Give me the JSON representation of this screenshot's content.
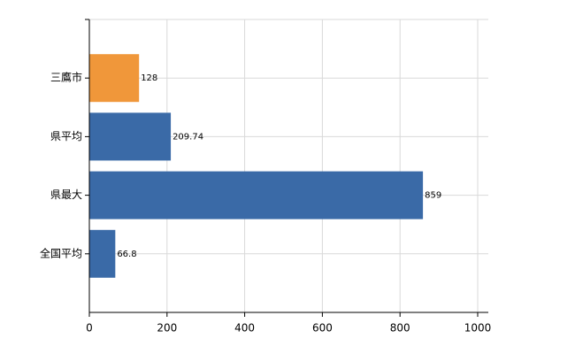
{
  "chart_data": {
    "type": "bar",
    "orientation": "horizontal",
    "categories": [
      "三鷹市",
      "県平均",
      "県最大",
      "全国平均"
    ],
    "values": [
      128,
      209.74,
      859,
      66.8
    ],
    "colors": [
      "#f0973a",
      "#3a6aa7",
      "#3a6aa7",
      "#3a6aa7"
    ],
    "xlim": [
      0,
      1000
    ],
    "xticks": [
      0,
      200,
      400,
      600,
      800,
      1000
    ],
    "grid": true
  }
}
